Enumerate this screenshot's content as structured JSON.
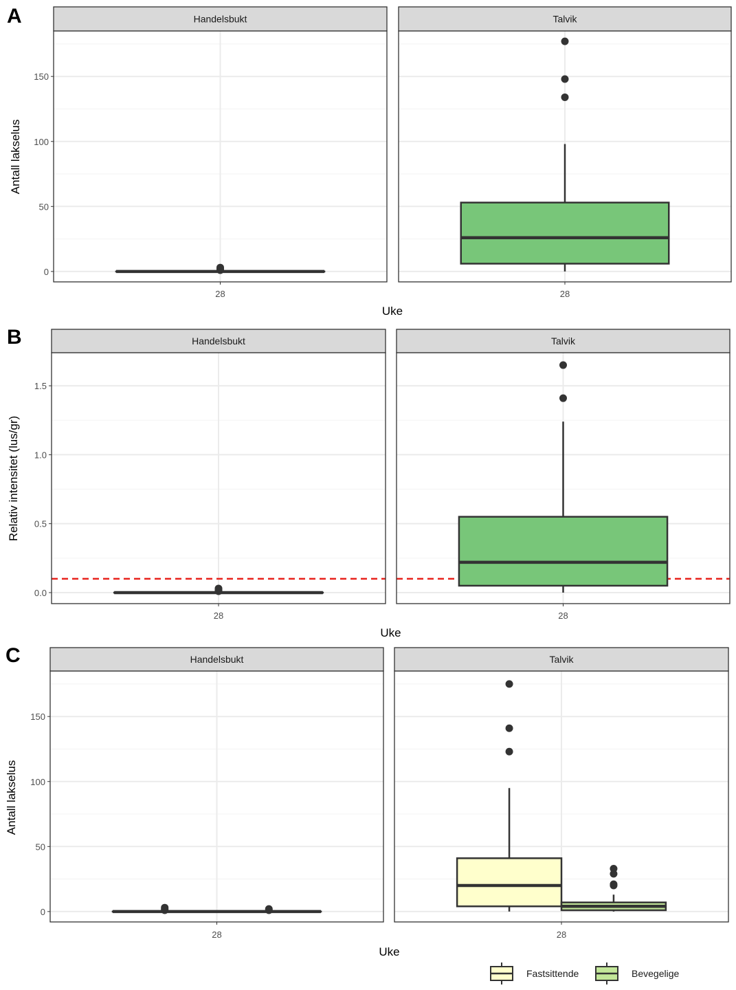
{
  "chart_data": [
    {
      "panel_label": "A",
      "type": "boxplot",
      "ylabel": "Antall lakselus",
      "xlabel": "Uke",
      "ylim": [
        -8,
        185
      ],
      "yticks": [
        0,
        50,
        100,
        150
      ],
      "ytick_labels": [
        "0",
        "50",
        "100",
        "150"
      ],
      "facets": [
        {
          "strip": "Handelsbukt",
          "x_tick": "28",
          "boxes": [
            {
              "slot": "full",
              "whisker_low": 0,
              "q1": 0,
              "median": 0,
              "q3": 0,
              "whisker_high": 0,
              "outliers": [
                1,
                2,
                3
              ],
              "fill": "#78c679"
            }
          ]
        },
        {
          "strip": "Talvik",
          "x_tick": "28",
          "boxes": [
            {
              "slot": "full",
              "whisker_low": 0,
              "q1": 6,
              "median": 26,
              "q3": 53,
              "whisker_high": 98,
              "outliers": [
                134,
                148,
                177
              ],
              "fill": "#78c679"
            }
          ]
        }
      ]
    },
    {
      "panel_label": "B",
      "type": "boxplot",
      "ylabel": "Relativ intensitet (lus/gr)",
      "xlabel": "Uke",
      "ylim": [
        -0.08,
        1.74
      ],
      "yticks": [
        0,
        0.5,
        1.0,
        1.5
      ],
      "ytick_labels": [
        "0.0",
        "0.5",
        "1.0",
        "1.5"
      ],
      "reference_line": {
        "y": 0.1,
        "color": "#e8211b",
        "style": "dashed"
      },
      "facets": [
        {
          "strip": "Handelsbukt",
          "x_tick": "28",
          "boxes": [
            {
              "slot": "full",
              "whisker_low": 0,
              "q1": 0,
              "median": 0,
              "q3": 0,
              "whisker_high": 0,
              "outliers": [
                0.01,
                0.02,
                0.03
              ],
              "fill": "#78c679"
            }
          ]
        },
        {
          "strip": "Talvik",
          "x_tick": "28",
          "boxes": [
            {
              "slot": "full",
              "whisker_low": 0,
              "q1": 0.05,
              "median": 0.22,
              "q3": 0.55,
              "whisker_high": 1.24,
              "outliers": [
                1.41,
                1.65
              ],
              "fill": "#78c679"
            }
          ]
        }
      ]
    },
    {
      "panel_label": "C",
      "type": "boxplot",
      "ylabel": "Antall lakselus",
      "xlabel": "Uke",
      "ylim": [
        -8,
        185
      ],
      "yticks": [
        0,
        50,
        100,
        150
      ],
      "ytick_labels": [
        "0",
        "50",
        "100",
        "150"
      ],
      "legend": {
        "position": "bottom-right",
        "entries": [
          {
            "label": "Fastsittende",
            "fill": "#ffffcc"
          },
          {
            "label": "Bevegelige",
            "fill": "#c2e699"
          }
        ]
      },
      "facets": [
        {
          "strip": "Handelsbukt",
          "x_tick": "28",
          "boxes": [
            {
              "slot": "left",
              "series": "Fastsittende",
              "whisker_low": 0,
              "q1": 0,
              "median": 0,
              "q3": 0,
              "whisker_high": 0,
              "outliers": [
                1,
                2,
                3
              ],
              "fill": "#ffffcc"
            },
            {
              "slot": "right",
              "series": "Bevegelige",
              "whisker_low": 0,
              "q1": 0,
              "median": 0,
              "q3": 0,
              "whisker_high": 0,
              "outliers": [
                1,
                2
              ],
              "fill": "#c2e699"
            }
          ]
        },
        {
          "strip": "Talvik",
          "x_tick": "28",
          "boxes": [
            {
              "slot": "left",
              "series": "Fastsittende",
              "whisker_low": 0,
              "q1": 4,
              "median": 20,
              "q3": 41,
              "whisker_high": 95,
              "outliers": [
                123,
                141,
                175
              ],
              "fill": "#ffffcc"
            },
            {
              "slot": "right",
              "series": "Bevegelige",
              "whisker_low": 0,
              "q1": 1,
              "median": 4,
              "q3": 7,
              "whisker_high": 13,
              "outliers": [
                20,
                21,
                29,
                33
              ],
              "fill": "#c2e699"
            }
          ]
        }
      ]
    }
  ]
}
